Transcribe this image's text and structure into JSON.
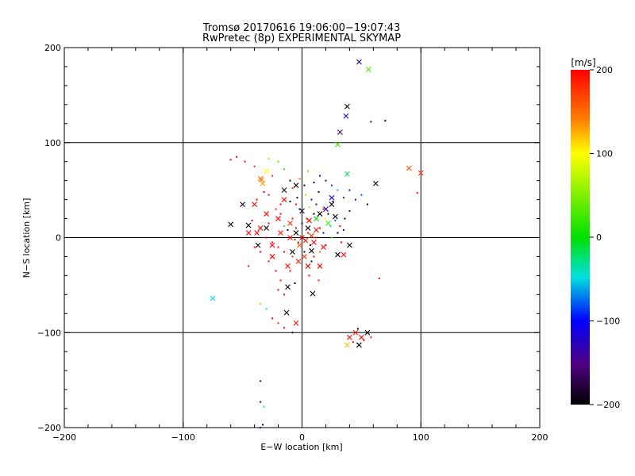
{
  "chart_data": {
    "type": "scatter",
    "title": "Tromsø 20170616 19:06:00−19:07:43",
    "subtitle": "RwPretec (8p) EXPERIMENTAL SKYMAP",
    "xlabel": "E−W location [km]",
    "ylabel": "N−S location [km]",
    "xlim": [
      -200,
      200
    ],
    "ylim": [
      -200,
      200
    ],
    "xticks": [
      -200,
      -100,
      0,
      100,
      200
    ],
    "yticks": [
      -200,
      -100,
      0,
      100,
      200
    ],
    "xtick_labels": [
      "−200",
      "−100",
      "0",
      "100",
      "200"
    ],
    "ytick_labels": [
      "−200",
      "−100",
      "0",
      "100",
      "200"
    ],
    "grid": true,
    "colorbar": {
      "label": "[m/s]",
      "range": [
        -200,
        200
      ],
      "ticks": [
        200,
        100,
        0,
        -100,
        -200
      ],
      "tick_labels": [
        "200",
        "100",
        "0",
        "−100",
        "−200"
      ]
    },
    "marker_legend": {
      "cross": "x",
      "dot": "·"
    },
    "series": [
      {
        "name": "crosses (x)",
        "marker": "x",
        "points": [
          [
            48,
            185,
            -120
          ],
          [
            56,
            177,
            30
          ],
          [
            38,
            138,
            -200
          ],
          [
            37,
            128,
            -120
          ],
          [
            32,
            111,
            -150
          ],
          [
            30,
            98,
            20
          ],
          [
            90,
            73,
            160
          ],
          [
            100,
            68,
            170
          ],
          [
            38,
            67,
            -20
          ],
          [
            -34,
            61,
            140
          ],
          [
            -33,
            57,
            130
          ],
          [
            -35,
            62,
            150
          ],
          [
            -30,
            70,
            100
          ],
          [
            -15,
            50,
            -180
          ],
          [
            -5,
            55,
            -200
          ],
          [
            62,
            57,
            -200
          ],
          [
            -50,
            35,
            -200
          ],
          [
            -60,
            14,
            -200
          ],
          [
            -45,
            13,
            -200
          ],
          [
            -30,
            10,
            -200
          ],
          [
            -20,
            20,
            200
          ],
          [
            -10,
            15,
            180
          ],
          [
            -5,
            5,
            -200
          ],
          [
            0,
            0,
            200
          ],
          [
            3,
            -3,
            190
          ],
          [
            5,
            10,
            -200
          ],
          [
            8,
            2,
            180
          ],
          [
            10,
            -5,
            200
          ],
          [
            12,
            20,
            0
          ],
          [
            15,
            25,
            -200
          ],
          [
            20,
            30,
            -120
          ],
          [
            22,
            15,
            30
          ],
          [
            25,
            35,
            -200
          ],
          [
            18,
            -10,
            200
          ],
          [
            -8,
            -15,
            -200
          ],
          [
            -3,
            -25,
            180
          ],
          [
            2,
            -20,
            170
          ],
          [
            5,
            -30,
            200
          ],
          [
            15,
            -30,
            200
          ],
          [
            -25,
            -20,
            200
          ],
          [
            -35,
            10,
            200
          ],
          [
            40,
            -8,
            -200
          ],
          [
            35,
            -18,
            190
          ],
          [
            30,
            -18,
            -200
          ],
          [
            -37,
            -8,
            -200
          ],
          [
            -40,
            35,
            200
          ],
          [
            -30,
            25,
            200
          ],
          [
            -12,
            -30,
            190
          ],
          [
            -12,
            -52,
            -200
          ],
          [
            -13,
            -79,
            -200
          ],
          [
            9,
            -59,
            -200
          ],
          [
            -5,
            -90,
            190
          ],
          [
            -75,
            -64,
            -50
          ],
          [
            38,
            -113,
            120
          ],
          [
            48,
            -113,
            -200
          ],
          [
            40,
            -105,
            200
          ],
          [
            45,
            -100,
            190
          ],
          [
            55,
            -100,
            -200
          ],
          [
            50,
            -105,
            200
          ],
          [
            -38,
            5,
            200
          ],
          [
            -25,
            -8,
            200
          ],
          [
            -18,
            5,
            190
          ],
          [
            0,
            28,
            -180
          ],
          [
            6,
            18,
            200
          ],
          [
            -2,
            -8,
            160
          ],
          [
            8,
            -14,
            -200
          ],
          [
            -10,
            0,
            200
          ],
          [
            12,
            8,
            200
          ],
          [
            25,
            42,
            -100
          ],
          [
            -15,
            40,
            200
          ],
          [
            28,
            22,
            -200
          ],
          [
            -45,
            5,
            200
          ]
        ]
      },
      {
        "name": "dots (·)",
        "marker": "dot",
        "points": [
          [
            70,
            123,
            -200
          ],
          [
            58,
            122,
            -150
          ],
          [
            -60,
            82,
            200
          ],
          [
            -55,
            85,
            200
          ],
          [
            -48,
            80,
            200
          ],
          [
            -40,
            75,
            190
          ],
          [
            -28,
            83,
            60
          ],
          [
            -20,
            80,
            30
          ],
          [
            -15,
            72,
            20
          ],
          [
            -10,
            60,
            -200
          ],
          [
            5,
            70,
            40
          ],
          [
            15,
            65,
            -100
          ],
          [
            20,
            60,
            -120
          ],
          [
            25,
            55,
            -90
          ],
          [
            40,
            50,
            -100
          ],
          [
            50,
            45,
            -80
          ],
          [
            35,
            42,
            -150
          ],
          [
            45,
            40,
            -110
          ],
          [
            55,
            35,
            -200
          ],
          [
            30,
            50,
            -60
          ],
          [
            -25,
            65,
            170
          ],
          [
            -38,
            40,
            200
          ],
          [
            -28,
            45,
            200
          ],
          [
            -22,
            30,
            180
          ],
          [
            -18,
            25,
            200
          ],
          [
            -10,
            38,
            -200
          ],
          [
            -5,
            35,
            200
          ],
          [
            3,
            45,
            60
          ],
          [
            8,
            40,
            -130
          ],
          [
            12,
            35,
            -150
          ],
          [
            18,
            30,
            180
          ],
          [
            22,
            25,
            -200
          ],
          [
            28,
            18,
            -80
          ],
          [
            32,
            12,
            200
          ],
          [
            -30,
            0,
            200
          ],
          [
            -25,
            -5,
            190
          ],
          [
            -20,
            -10,
            200
          ],
          [
            -15,
            -15,
            200
          ],
          [
            -8,
            -20,
            180
          ],
          [
            2,
            -15,
            -200
          ],
          [
            10,
            -20,
            200
          ],
          [
            15,
            -15,
            150
          ],
          [
            20,
            -8,
            200
          ],
          [
            25,
            0,
            30
          ],
          [
            30,
            5,
            -200
          ],
          [
            35,
            8,
            -120
          ],
          [
            -35,
            -15,
            200
          ],
          [
            -40,
            -10,
            190
          ],
          [
            -28,
            -25,
            200
          ],
          [
            -22,
            -35,
            200
          ],
          [
            -18,
            -45,
            190
          ],
          [
            -15,
            -60,
            200
          ],
          [
            -35,
            -70,
            60
          ],
          [
            -30,
            -75,
            -50
          ],
          [
            -25,
            -85,
            200
          ],
          [
            -20,
            -90,
            180
          ],
          [
            -15,
            -95,
            200
          ],
          [
            -8,
            -100,
            -200
          ],
          [
            43,
            -110,
            200
          ],
          [
            52,
            -108,
            200
          ],
          [
            58,
            -105,
            190
          ],
          [
            47,
            -96,
            -200
          ],
          [
            65,
            -43,
            190
          ],
          [
            -35,
            -151,
            -120
          ],
          [
            -35,
            -173,
            -140
          ],
          [
            -32,
            -178,
            -50
          ],
          [
            -35,
            -200,
            -150
          ],
          [
            -33,
            -197,
            -200
          ],
          [
            97,
            47,
            200
          ],
          [
            -5,
            10,
            200
          ],
          [
            0,
            15,
            -200
          ],
          [
            5,
            5,
            190
          ],
          [
            -8,
            20,
            200
          ],
          [
            10,
            25,
            -200
          ],
          [
            15,
            10,
            200
          ],
          [
            -12,
            8,
            -180
          ],
          [
            -3,
            -5,
            200
          ],
          [
            7,
            -8,
            -200
          ],
          [
            -6,
            -2,
            190
          ],
          [
            4,
            20,
            200
          ],
          [
            -15,
            12,
            30
          ],
          [
            18,
            5,
            -120
          ],
          [
            12,
            0,
            200
          ],
          [
            -2,
            30,
            -200
          ],
          [
            6,
            32,
            60
          ],
          [
            -18,
            35,
            200
          ],
          [
            24,
            12,
            -40
          ],
          [
            -28,
            15,
            200
          ],
          [
            8,
            -25,
            -200
          ],
          [
            -10,
            -35,
            200
          ],
          [
            20,
            20,
            100
          ],
          [
            -4,
            42,
            -200
          ],
          [
            36,
            20,
            -200
          ],
          [
            40,
            28,
            -150
          ],
          [
            -42,
            18,
            200
          ],
          [
            -8,
            52,
            170
          ],
          [
            14,
            48,
            -170
          ],
          [
            2,
            55,
            -200
          ],
          [
            -32,
            48,
            200
          ],
          [
            26,
            38,
            -140
          ],
          [
            -20,
            -55,
            200
          ],
          [
            6,
            -40,
            200
          ],
          [
            14,
            -45,
            190
          ],
          [
            -6,
            -48,
            -200
          ],
          [
            -2,
            62,
            150
          ],
          [
            10,
            58,
            -110
          ],
          [
            33,
            -5,
            200
          ],
          [
            -45,
            -30,
            200
          ]
        ]
      }
    ]
  }
}
